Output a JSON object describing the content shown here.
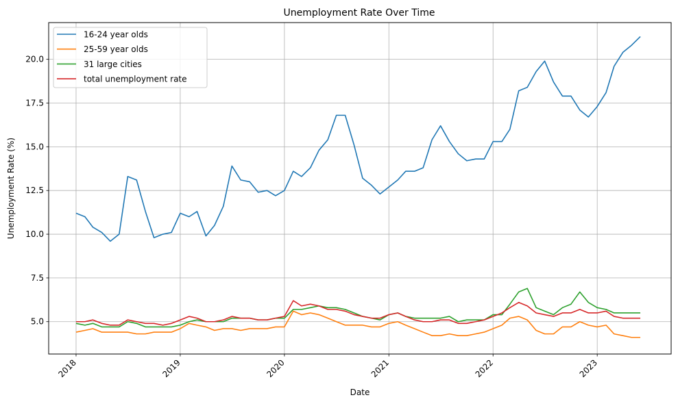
{
  "chart_data": {
    "type": "line",
    "title": "Unemployment Rate Over Time",
    "xlabel": "Date",
    "ylabel": "Unemployment Rate (%)",
    "x_start": "2018-01",
    "x_frequency": "monthly",
    "xlim": [
      "2017-09-27",
      "2023-09-17"
    ],
    "ylim": [
      3.15,
      22.1
    ],
    "x_ticks": [
      "2018",
      "2019",
      "2020",
      "2021",
      "2022",
      "2023"
    ],
    "y_ticks": [
      "5.0",
      "7.5",
      "10.0",
      "12.5",
      "15.0",
      "17.5",
      "20.0"
    ],
    "grid": true,
    "legend_position": "top-left",
    "series": [
      {
        "name": "16-24 year olds",
        "color": "#1f77b4",
        "values": [
          11.2,
          11.0,
          10.4,
          10.1,
          9.6,
          10.0,
          13.3,
          13.1,
          11.3,
          9.8,
          10.0,
          10.1,
          11.2,
          11.0,
          11.3,
          9.9,
          10.5,
          11.6,
          13.9,
          13.1,
          13.0,
          12.4,
          12.5,
          12.2,
          12.5,
          13.6,
          13.3,
          13.8,
          14.8,
          15.4,
          16.8,
          16.8,
          15.1,
          13.2,
          12.8,
          12.3,
          12.7,
          13.1,
          13.6,
          13.6,
          13.8,
          15.4,
          16.2,
          15.3,
          14.6,
          14.2,
          14.3,
          14.3,
          15.3,
          15.3,
          16.0,
          18.2,
          18.4,
          19.3,
          19.9,
          18.7,
          17.9,
          17.9,
          17.1,
          16.7,
          17.3,
          18.1,
          19.6,
          20.4,
          20.8,
          21.3
        ]
      },
      {
        "name": "25-59 year olds",
        "color": "#ff7f0e",
        "values": [
          4.4,
          4.5,
          4.6,
          4.4,
          4.4,
          4.4,
          4.4,
          4.3,
          4.3,
          4.4,
          4.4,
          4.4,
          4.6,
          4.9,
          4.8,
          4.7,
          4.5,
          4.6,
          4.6,
          4.5,
          4.6,
          4.6,
          4.6,
          4.7,
          4.7,
          5.6,
          5.4,
          5.5,
          5.4,
          5.2,
          5.0,
          4.8,
          4.8,
          4.8,
          4.7,
          4.7,
          4.9,
          5.0,
          4.8,
          4.6,
          4.4,
          4.2,
          4.2,
          4.3,
          4.2,
          4.2,
          4.3,
          4.4,
          4.6,
          4.8,
          5.2,
          5.3,
          5.1,
          4.5,
          4.3,
          4.3,
          4.7,
          4.7,
          5.0,
          4.8,
          4.7,
          4.8,
          4.3,
          4.2,
          4.1,
          4.1
        ]
      },
      {
        "name": "31 large cities",
        "color": "#2ca02c",
        "values": [
          4.9,
          4.8,
          4.9,
          4.7,
          4.7,
          4.7,
          5.0,
          4.9,
          4.7,
          4.7,
          4.7,
          4.7,
          4.8,
          5.0,
          5.1,
          5.0,
          5.0,
          5.0,
          5.2,
          5.2,
          5.2,
          5.1,
          5.1,
          5.2,
          5.2,
          5.7,
          5.7,
          5.8,
          5.9,
          5.8,
          5.8,
          5.7,
          5.5,
          5.3,
          5.2,
          5.1,
          5.4,
          5.5,
          5.3,
          5.2,
          5.2,
          5.2,
          5.2,
          5.3,
          5.0,
          5.1,
          5.1,
          5.1,
          5.4,
          5.4,
          6.0,
          6.7,
          6.9,
          5.8,
          5.6,
          5.4,
          5.8,
          6.0,
          6.7,
          6.1,
          5.8,
          5.7,
          5.5,
          5.5,
          5.5,
          5.5
        ]
      },
      {
        "name": "total unemployment rate",
        "color": "#d62728",
        "values": [
          5.0,
          5.0,
          5.1,
          4.9,
          4.8,
          4.8,
          5.1,
          5.0,
          4.9,
          4.9,
          4.8,
          4.9,
          5.1,
          5.3,
          5.2,
          5.0,
          5.0,
          5.1,
          5.3,
          5.2,
          5.2,
          5.1,
          5.1,
          5.2,
          5.3,
          6.2,
          5.9,
          6.0,
          5.9,
          5.7,
          5.7,
          5.6,
          5.4,
          5.3,
          5.2,
          5.2,
          5.4,
          5.5,
          5.3,
          5.1,
          5.0,
          5.0,
          5.1,
          5.1,
          4.9,
          4.9,
          5.0,
          5.1,
          5.3,
          5.5,
          5.8,
          6.1,
          5.9,
          5.5,
          5.4,
          5.3,
          5.5,
          5.5,
          5.7,
          5.5,
          5.5,
          5.6,
          5.3,
          5.2,
          5.2,
          5.2
        ]
      }
    ]
  }
}
